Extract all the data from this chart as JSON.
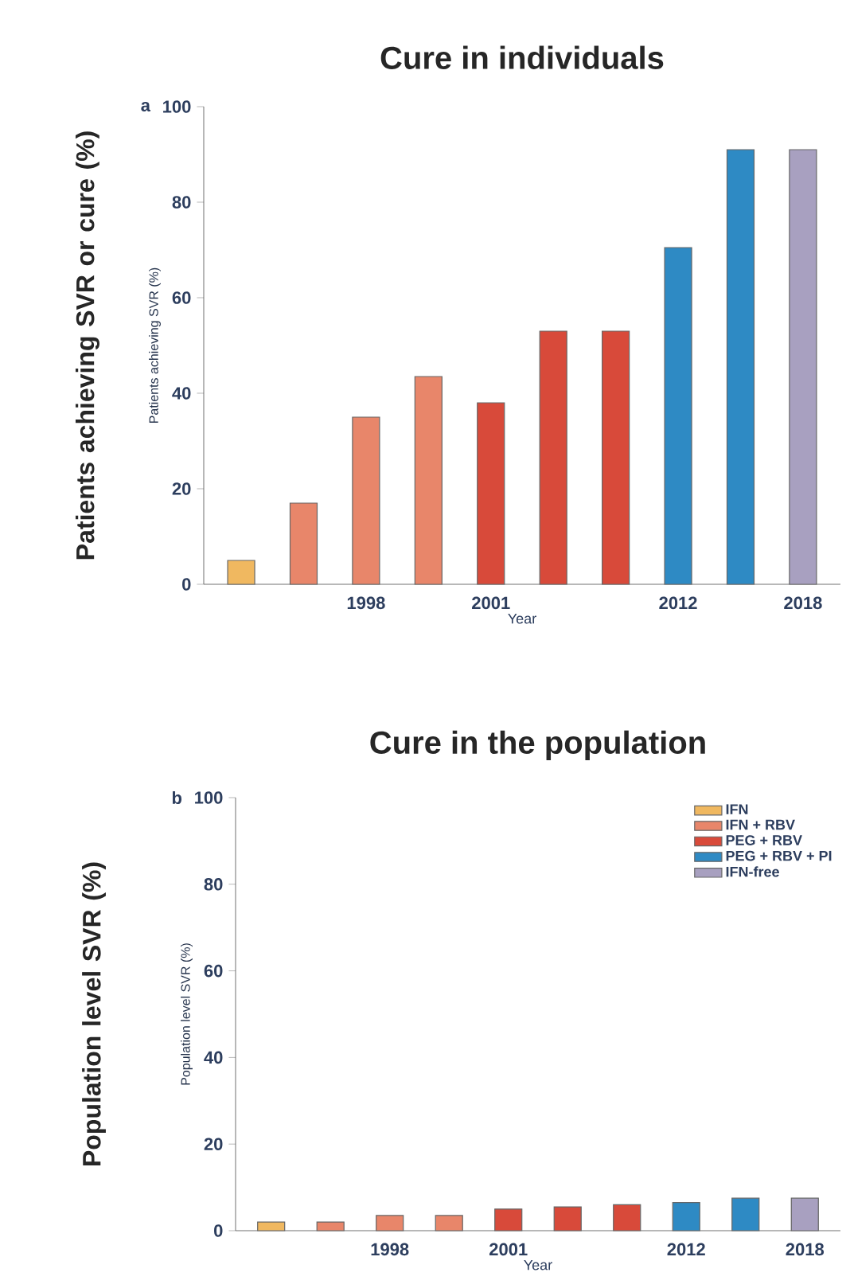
{
  "chart_data": [
    {
      "type": "bar",
      "title": "Cure in individuals",
      "xlabel": "Year",
      "ylabel": "Patients achieving SVR (%)",
      "annotations": [
        "Patients achieving SVR or cure (%)",
        "a"
      ],
      "categories": [
        null,
        null,
        "1998",
        null,
        "2001",
        null,
        null,
        "2012",
        null,
        "2018"
      ],
      "values": [
        5,
        17,
        35,
        43.5,
        38,
        53,
        53,
        70.5,
        91,
        91
      ],
      "colors": [
        "#f0b860",
        "#e8866a",
        "#e8866a",
        "#e8866a",
        "#d84a3a",
        "#d84a3a",
        "#d84a3a",
        "#2e8ac4",
        "#2e8ac4",
        "#a8a0c0"
      ],
      "ylim": [
        0,
        100
      ],
      "yticks": [
        0,
        20,
        40,
        60,
        80,
        100
      ]
    },
    {
      "type": "bar",
      "title": "Cure in the population",
      "xlabel": "Year",
      "ylabel": "Population level SVR (%)",
      "annotations": [
        "Population level SVR (%)",
        "b"
      ],
      "categories": [
        null,
        null,
        "1998",
        null,
        "2001",
        null,
        null,
        "2012",
        null,
        "2018"
      ],
      "series": [
        {
          "name": "IFN",
          "color": "#f0b860",
          "values": [
            2,
            null,
            null,
            null,
            null,
            null,
            null,
            null,
            null,
            null
          ]
        },
        {
          "name": "IFN + RBV",
          "color": "#e8866a",
          "values": [
            null,
            2,
            3.5,
            3.5,
            null,
            null,
            null,
            null,
            null,
            null
          ]
        },
        {
          "name": "PEG + RBV",
          "color": "#d84a3a",
          "values": [
            null,
            null,
            null,
            null,
            5,
            5.5,
            6,
            null,
            null,
            null
          ]
        },
        {
          "name": "PEG + RBV + PI",
          "color": "#2e8ac4",
          "values": [
            null,
            null,
            null,
            null,
            null,
            null,
            null,
            6.5,
            7.5,
            null
          ]
        },
        {
          "name": "IFN-free",
          "color": "#a8a0c0",
          "values": [
            null,
            null,
            null,
            null,
            null,
            null,
            null,
            null,
            null,
            7.5
          ]
        }
      ],
      "legend": "top right",
      "ylim": [
        0,
        100
      ],
      "yticks": [
        0,
        20,
        40,
        60,
        80,
        100
      ]
    }
  ]
}
